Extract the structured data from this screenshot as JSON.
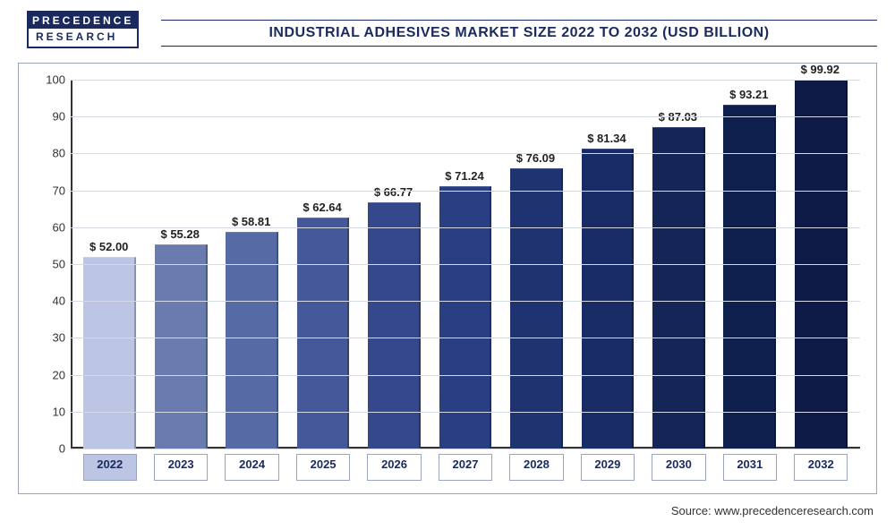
{
  "logo": {
    "top": "PRECEDENCE",
    "bottom": "RESEARCH"
  },
  "title": "INDUSTRIAL ADHESIVES MARKET SIZE 2022 TO 2032 (USD BILLION)",
  "source": "Source: www.precedenceresearch.com",
  "chart": {
    "type": "bar",
    "ylim": [
      0,
      100
    ],
    "ytick_step": 10,
    "grid_color": "#d6dae6",
    "background_color": "#ffffff",
    "axis_color": "#333333",
    "label_fontsize": 13,
    "title_fontsize": 16,
    "bar_width": 0.74,
    "categories": [
      "2022",
      "2023",
      "2024",
      "2025",
      "2026",
      "2027",
      "2028",
      "2029",
      "2030",
      "2031",
      "2032"
    ],
    "values": [
      52.0,
      55.28,
      58.81,
      62.64,
      66.77,
      71.24,
      76.09,
      81.34,
      87.03,
      93.21,
      99.92
    ],
    "value_labels": [
      "$ 52.00",
      "$ 55.28",
      "$ 58.81",
      "$ 62.64",
      "$ 66.77",
      "$ 71.24",
      "$ 76.09",
      "$ 81.34",
      "$ 87.03",
      "$ 93.21",
      "$ 99.92"
    ],
    "bar_colors": [
      "#bcc5e4",
      "#6a7bb0",
      "#566aa6",
      "#45589a",
      "#35488c",
      "#2a3e82",
      "#1f3370",
      "#192c66",
      "#142558",
      "#10204e",
      "#0d1b46"
    ],
    "legend_swatch_color": "#bcc5e4"
  }
}
